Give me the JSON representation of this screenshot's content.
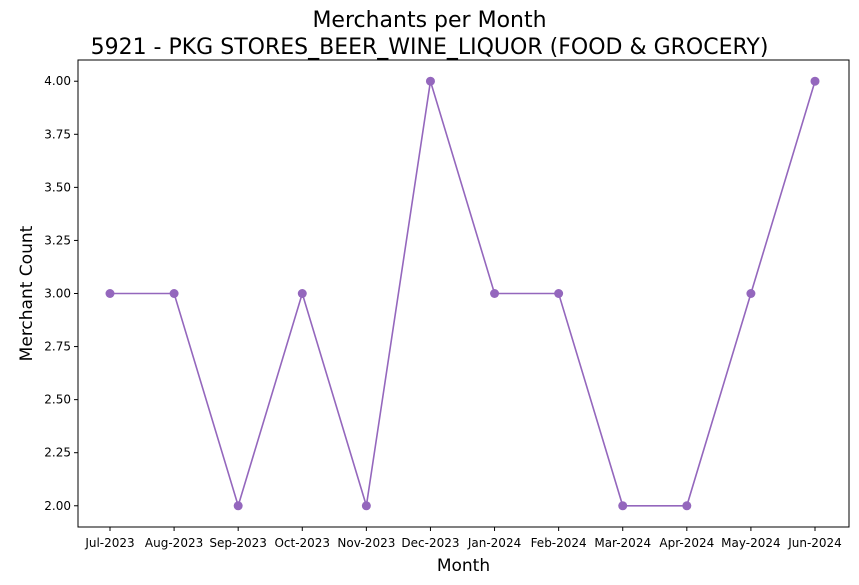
{
  "chart_data": {
    "type": "line",
    "title": "Merchants per Month",
    "subtitle": "5921 - PKG STORES_BEER_WINE_LIQUOR (FOOD & GROCERY)",
    "xlabel": "Month",
    "ylabel": "Merchant Count",
    "categories": [
      "Jul-2023",
      "Aug-2023",
      "Sep-2023",
      "Oct-2023",
      "Nov-2023",
      "Dec-2023",
      "Jan-2024",
      "Feb-2024",
      "Mar-2024",
      "Apr-2024",
      "May-2024",
      "Jun-2024"
    ],
    "series": [
      {
        "values": [
          3,
          3,
          2,
          3,
          2,
          4,
          3,
          3,
          2,
          2,
          3,
          4
        ],
        "color": "#9467bd"
      }
    ],
    "ylim": [
      1.9,
      4.1
    ],
    "yticks": [
      "2.00",
      "2.25",
      "2.50",
      "2.75",
      "3.00",
      "3.25",
      "3.50",
      "3.75",
      "4.00"
    ],
    "grid": false,
    "marker": "circle"
  }
}
